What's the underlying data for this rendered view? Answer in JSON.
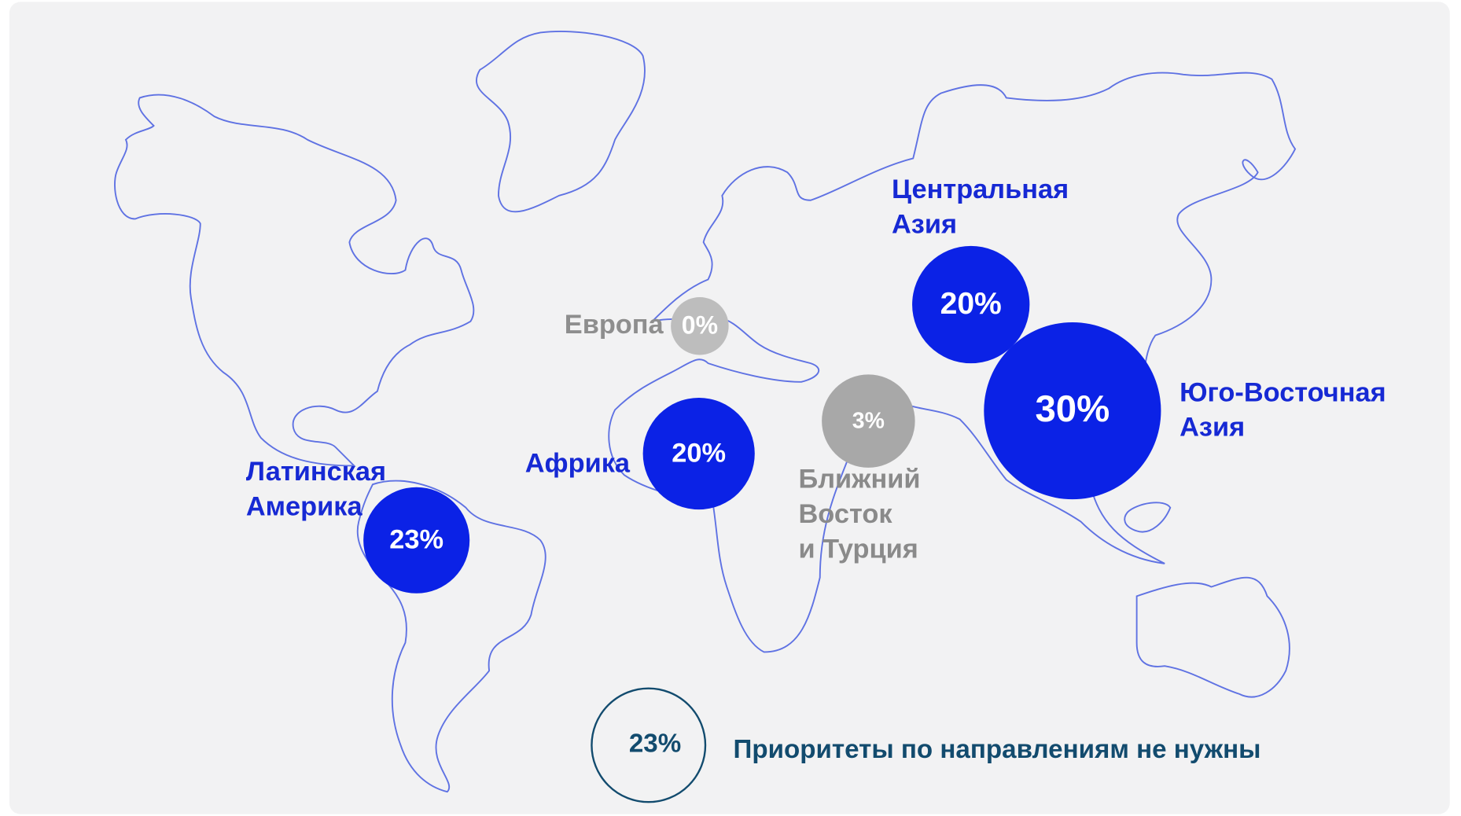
{
  "regions": [
    {
      "name_lines": [
        "Европа"
      ],
      "label": "0%",
      "color": "#bdbdbd",
      "text_color": "#8e8e8e"
    },
    {
      "name_lines": [
        "Центральная",
        "Азия"
      ],
      "label": "20%",
      "color": "#0b22e6",
      "text_color": "#1629d4"
    },
    {
      "name_lines": [
        "Юго-Восточная",
        "Азия"
      ],
      "label": "30%",
      "color": "#0b22e6",
      "text_color": "#1629d4"
    },
    {
      "name_lines": [
        "Ближний",
        "Восток",
        "и Турция"
      ],
      "label": "3%",
      "color": "#a8a8a8",
      "text_color": "#8a8a8a"
    },
    {
      "name_lines": [
        "Африка"
      ],
      "label": "20%",
      "color": "#0b22e6",
      "text_color": "#1629d4"
    },
    {
      "name_lines": [
        "Латинская",
        "Америка"
      ],
      "label": "23%",
      "color": "#0b22e6",
      "text_color": "#1629d4"
    }
  ],
  "note": {
    "label": "23%",
    "text": "Приоритеты по направлениям не нужны",
    "color": "#124b6e"
  }
}
